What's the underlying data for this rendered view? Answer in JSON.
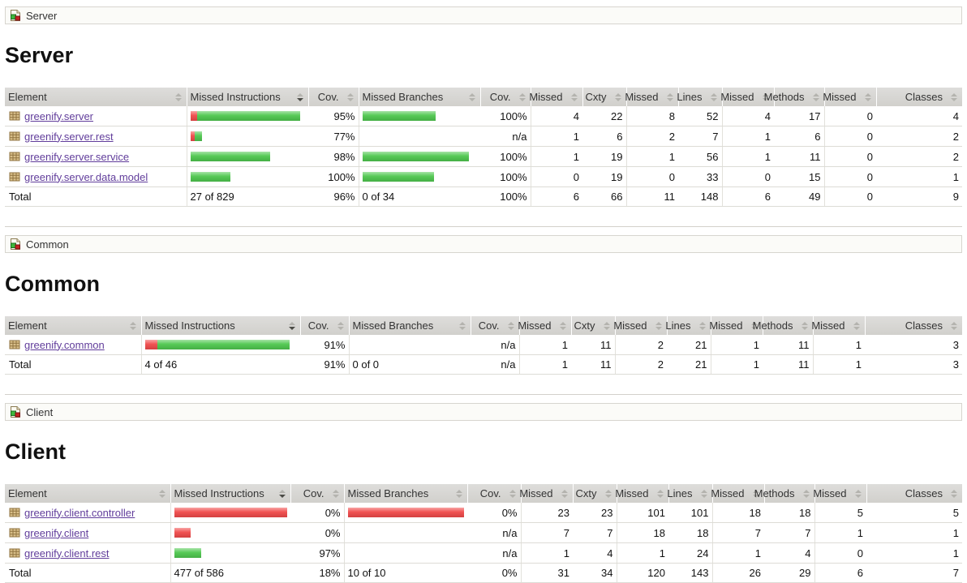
{
  "colors": {
    "covered_green": "#4ec74e",
    "missed_red": "#f04a4a",
    "link_purple": "#613d9b",
    "header_gray": "#d6d5d1",
    "border_gray": "#d7d5cf"
  },
  "icons": {
    "breadcrumb_icon": "coverage-group-icon (white page with green and red squares)",
    "row_icon": "package-icon (tan grid)",
    "sort_icon": "sort-arrows-icon (up/down triangles)"
  },
  "sections": [
    {
      "breadcrumb": "Server",
      "title": "Server",
      "columns": [
        {
          "label": "Element",
          "sorted": false
        },
        {
          "label": "Missed Instructions",
          "sorted": true
        },
        {
          "label": "Cov.",
          "sorted": false
        },
        {
          "label": "Missed Branches",
          "sorted": false
        },
        {
          "label": "Cov.",
          "sorted": false
        },
        {
          "label": "Missed",
          "sorted": false
        },
        {
          "label": "Cxty",
          "sorted": false
        },
        {
          "label": "Missed",
          "sorted": false
        },
        {
          "label": "Lines",
          "sorted": false
        },
        {
          "label": "Missed",
          "sorted": false
        },
        {
          "label": "Methods",
          "sorted": false
        },
        {
          "label": "Missed",
          "sorted": false
        },
        {
          "label": "Classes",
          "sorted": false
        }
      ],
      "rows": [
        {
          "element": "greenify.server",
          "mi_bar": {
            "red": 8,
            "green": 127
          },
          "mi_cov": "95%",
          "mb_bar": {
            "red": 0,
            "green": 90
          },
          "mb_cov": "100%",
          "cells": [
            "4",
            "22",
            "8",
            "52",
            "4",
            "17",
            "0",
            "4"
          ]
        },
        {
          "element": "greenify.server.rest",
          "mi_bar": {
            "red": 5,
            "green": 9
          },
          "mi_cov": "77%",
          "mb_bar": {
            "red": 0,
            "green": 0
          },
          "mb_cov": "n/a",
          "cells": [
            "1",
            "6",
            "2",
            "7",
            "1",
            "6",
            "0",
            "2"
          ]
        },
        {
          "element": "greenify.server.service",
          "mi_bar": {
            "red": 0,
            "green": 98
          },
          "mi_cov": "98%",
          "mb_bar": {
            "red": 0,
            "green": 131
          },
          "mb_cov": "100%",
          "cells": [
            "1",
            "19",
            "1",
            "56",
            "1",
            "11",
            "0",
            "2"
          ]
        },
        {
          "element": "greenify.server.data.model",
          "mi_bar": {
            "red": 0,
            "green": 49
          },
          "mi_cov": "100%",
          "mb_bar": {
            "red": 0,
            "green": 88
          },
          "mb_cov": "100%",
          "cells": [
            "0",
            "19",
            "0",
            "33",
            "0",
            "15",
            "0",
            "1"
          ]
        }
      ],
      "total": {
        "label": "Total",
        "mi_text": "27 of 829",
        "mi_cov": "96%",
        "mb_text": "0 of 34",
        "mb_cov": "100%",
        "cells": [
          "6",
          "66",
          "11",
          "148",
          "6",
          "49",
          "0",
          "9"
        ]
      }
    },
    {
      "breadcrumb": "Common",
      "title": "Common",
      "columns": [
        {
          "label": "Element",
          "sorted": false
        },
        {
          "label": "Missed Instructions",
          "sorted": true
        },
        {
          "label": "Cov.",
          "sorted": false
        },
        {
          "label": "Missed Branches",
          "sorted": false
        },
        {
          "label": "Cov.",
          "sorted": false
        },
        {
          "label": "Missed",
          "sorted": false
        },
        {
          "label": "Cxty",
          "sorted": false
        },
        {
          "label": "Missed",
          "sorted": false
        },
        {
          "label": "Lines",
          "sorted": false
        },
        {
          "label": "Missed",
          "sorted": false
        },
        {
          "label": "Methods",
          "sorted": false
        },
        {
          "label": "Missed",
          "sorted": false
        },
        {
          "label": "Classes",
          "sorted": false
        }
      ],
      "rows": [
        {
          "element": "greenify.common",
          "mi_bar": {
            "red": 15,
            "green": 163
          },
          "mi_cov": "91%",
          "mb_bar": {
            "red": 0,
            "green": 0
          },
          "mb_cov": "n/a",
          "cells": [
            "1",
            "11",
            "2",
            "21",
            "1",
            "11",
            "1",
            "3"
          ]
        }
      ],
      "total": {
        "label": "Total",
        "mi_text": "4 of 46",
        "mi_cov": "91%",
        "mb_text": "0 of 0",
        "mb_cov": "n/a",
        "cells": [
          "1",
          "11",
          "2",
          "21",
          "1",
          "11",
          "1",
          "3"
        ]
      }
    },
    {
      "breadcrumb": "Client",
      "title": "Client",
      "columns": [
        {
          "label": "Element",
          "sorted": false
        },
        {
          "label": "Missed Instructions",
          "sorted": true
        },
        {
          "label": "Cov.",
          "sorted": false
        },
        {
          "label": "Missed Branches",
          "sorted": false
        },
        {
          "label": "Cov.",
          "sorted": false
        },
        {
          "label": "Missed",
          "sorted": false
        },
        {
          "label": "Cxty",
          "sorted": false
        },
        {
          "label": "Missed",
          "sorted": false
        },
        {
          "label": "Lines",
          "sorted": false
        },
        {
          "label": "Missed",
          "sorted": false
        },
        {
          "label": "Methods",
          "sorted": false
        },
        {
          "label": "Missed",
          "sorted": false
        },
        {
          "label": "Classes",
          "sorted": false
        }
      ],
      "rows": [
        {
          "element": "greenify.client.controller",
          "mi_bar": {
            "red": 143,
            "green": 0
          },
          "mi_cov": "0%",
          "mb_bar": {
            "red": 147,
            "green": 0
          },
          "mb_cov": "0%",
          "cells": [
            "23",
            "23",
            "101",
            "101",
            "18",
            "18",
            "5",
            "5"
          ]
        },
        {
          "element": "greenify.client",
          "mi_bar": {
            "red": 20,
            "green": 0
          },
          "mi_cov": "0%",
          "mb_bar": {
            "red": 0,
            "green": 0
          },
          "mb_cov": "n/a",
          "cells": [
            "7",
            "7",
            "18",
            "18",
            "7",
            "7",
            "1",
            "1"
          ]
        },
        {
          "element": "greenify.client.rest",
          "mi_bar": {
            "red": 0,
            "green": 33
          },
          "mi_cov": "97%",
          "mb_bar": {
            "red": 0,
            "green": 0
          },
          "mb_cov": "n/a",
          "cells": [
            "1",
            "4",
            "1",
            "24",
            "1",
            "4",
            "0",
            "1"
          ]
        }
      ],
      "total": {
        "label": "Total",
        "mi_text": "477 of 586",
        "mi_cov": "18%",
        "mb_text": "10 of 10",
        "mb_cov": "0%",
        "cells": [
          "31",
          "34",
          "120",
          "143",
          "26",
          "29",
          "6",
          "7"
        ]
      }
    }
  ]
}
